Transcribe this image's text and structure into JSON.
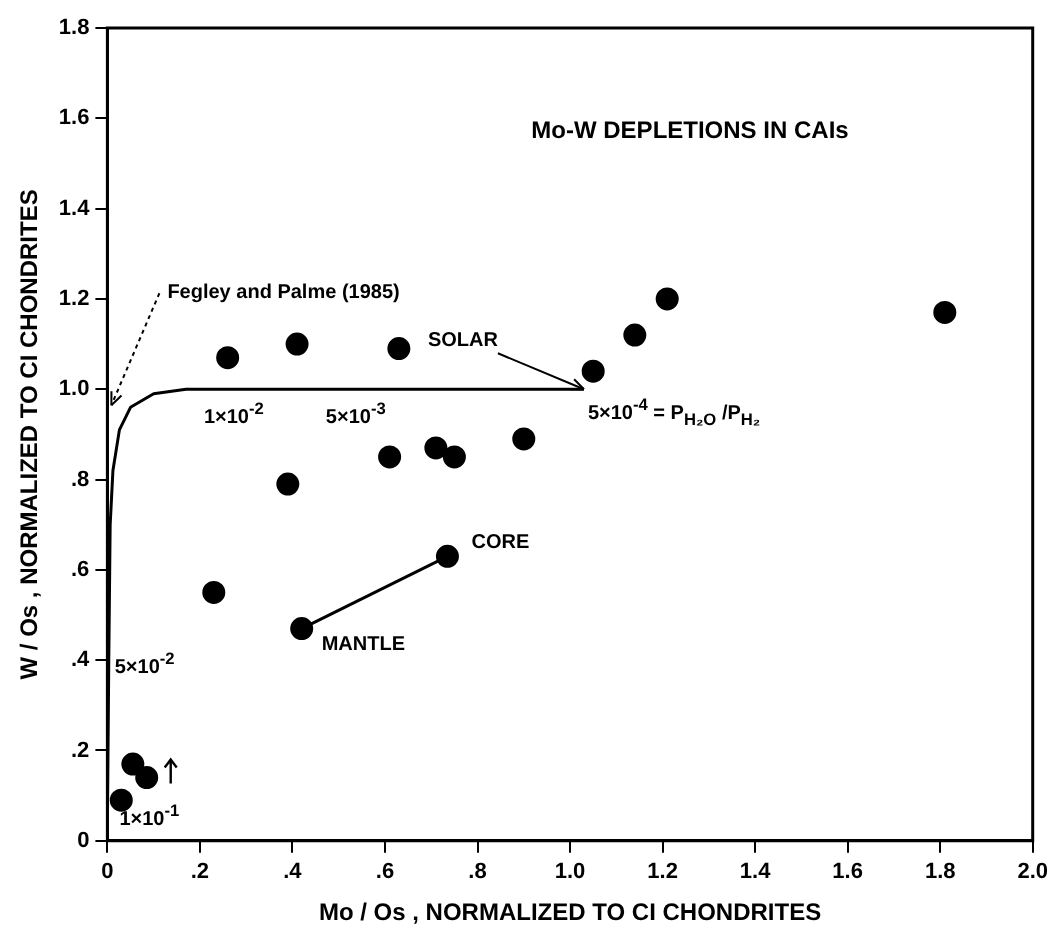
{
  "chart_data": {
    "type": "scatter",
    "title": "Mo-W DEPLETIONS IN CAIs",
    "xlabel": "Mo / Os , NORMALIZED TO CI CHONDRITES",
    "ylabel": "W / Os , NORMALIZED TO CI CHONDRITES",
    "xlim": [
      0,
      2.0
    ],
    "ylim": [
      0,
      1.8
    ],
    "xticks": [
      0,
      {
        "value": 0.2,
        "label": ".2"
      },
      {
        "value": 0.4,
        "label": ".4"
      },
      {
        "value": 0.6,
        "label": ".6"
      },
      {
        "value": 0.8,
        "label": ".8"
      },
      {
        "value": 1.0,
        "label": "1.0"
      },
      1.2,
      1.4,
      1.6,
      1.8,
      {
        "value": 2.0,
        "label": "2.0"
      }
    ],
    "yticks": [
      0,
      {
        "value": 0.2,
        "label": ".2"
      },
      {
        "value": 0.4,
        "label": ".4"
      },
      {
        "value": 0.6,
        "label": ".6"
      },
      {
        "value": 0.8,
        "label": ".8"
      },
      {
        "value": 1.0,
        "label": "1.0"
      },
      1.2,
      1.4,
      1.6,
      1.8
    ],
    "grid": false,
    "legend": false,
    "series": [
      {
        "color": "#000000",
        "marker": "circle",
        "x": [
          0.03,
          0.055,
          0.085,
          0.23,
          0.39,
          0.61,
          0.71,
          0.75,
          0.9,
          0.26,
          0.41,
          0.63,
          1.05,
          1.14,
          1.21,
          1.81
        ],
        "values": [
          0.09,
          0.17,
          0.14,
          0.55,
          0.79,
          0.85,
          0.87,
          0.85,
          0.89,
          1.07,
          1.1,
          1.09,
          1.04,
          1.12,
          1.2,
          1.17
        ]
      },
      {
        "type": "line",
        "color": "#000000",
        "marker": "none",
        "x": [
          0,
          0.003,
          0.006,
          0.012,
          0.026,
          0.05,
          0.1,
          0.17,
          1.03
        ],
        "values": [
          0.03,
          0.4,
          0.7,
          0.82,
          0.91,
          0.96,
          0.99,
          1.0,
          1.0
        ]
      },
      {
        "type": "line",
        "color": "#000000",
        "marker": "circle",
        "x": [
          0.42,
          0.735
        ],
        "values": [
          0.47,
          0.63
        ]
      }
    ],
    "annotations": [
      "Fegley and Palme (1985)",
      {
        "text": "SOLAR",
        "x": 1.03,
        "y": 1.0
      },
      {
        "text": "1×10$^{-2}$",
        "x": 0.2,
        "y": 1.0
      },
      {
        "text": "5×10$^{-3}$",
        "x": 0.55,
        "y": 1.0
      },
      {
        "text": "5×10$^{-4}$ = P$_{H₂O}$ /P$_{H₂}$",
        "x": 1.03,
        "y": 1.0
      },
      {
        "text": "5×10$^{-2}$",
        "x": 0.003,
        "y": 0.4
      },
      {
        "text": "1×10$^{-1}$",
        "x": 0,
        "y": 0.03
      },
      {
        "text": "MANTLE",
        "x": 0.42,
        "y": 0.47
      },
      {
        "text": "CORE",
        "x": 0.735,
        "y": 0.63
      }
    ]
  }
}
